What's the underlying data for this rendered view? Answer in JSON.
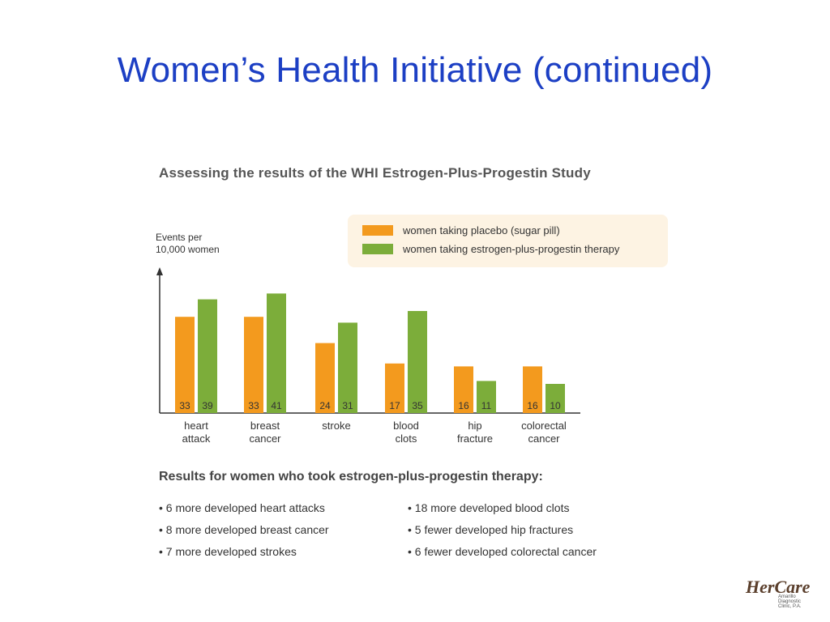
{
  "slide": {
    "title": "Women’s Health Initiative (continued)"
  },
  "chart_data": {
    "type": "bar",
    "title": "Assessing the results of the WHI Estrogen-Plus-Progestin Study",
    "ylabel": "Events per 10,000 women",
    "ylabel_lines": [
      "Events per",
      "10,000 women"
    ],
    "categories": [
      [
        "heart",
        "attack"
      ],
      [
        "breast",
        "cancer"
      ],
      [
        "stroke"
      ],
      [
        "blood",
        "clots"
      ],
      [
        "hip",
        "fracture"
      ],
      [
        "colorectal",
        "cancer"
      ]
    ],
    "series": [
      {
        "name": "women taking placebo (sugar pill)",
        "color": "#f39a1e",
        "values": [
          33,
          33,
          24,
          17,
          16,
          16
        ]
      },
      {
        "name": "women taking estrogen-plus-progestin therapy",
        "color": "#7cad3a",
        "values": [
          39,
          41,
          31,
          35,
          11,
          10
        ]
      }
    ],
    "ylim": [
      0,
      50
    ],
    "grid": false,
    "legend_position": "top-right"
  },
  "results": {
    "heading": "Results for women who took estrogen-plus-progestin therapy:",
    "left": [
      "• 6 more developed heart attacks",
      "• 8 more developed breast cancer",
      "• 7 more developed strokes"
    ],
    "right": [
      "• 18 more developed blood clots",
      "• 5 fewer developed hip fractures",
      "• 6 fewer developed colorectal cancer"
    ]
  },
  "logo": {
    "text": "HerCare",
    "subtext": "Amarillo Diagnostic Clinic, P.A."
  }
}
